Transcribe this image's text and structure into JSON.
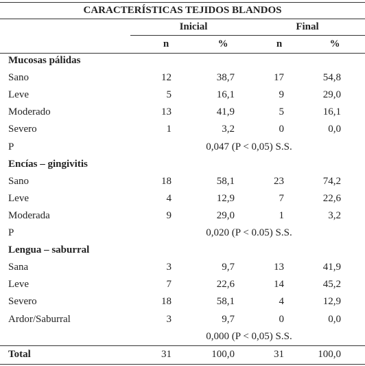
{
  "title": "CARACTERÍSTICAS TEJIDOS BLANDOS",
  "column_groups": [
    "Inicial",
    "Final"
  ],
  "columns": [
    "n",
    "%",
    "n",
    "%"
  ],
  "sections": [
    {
      "heading": "Mucosas pálidas",
      "rows": [
        [
          "Sano",
          "12",
          "38,7",
          "17",
          "54,8"
        ],
        [
          "Leve",
          "5",
          "16,1",
          "9",
          "29,0"
        ],
        [
          "Moderado",
          "13",
          "41,9",
          "5",
          "16,1"
        ],
        [
          "Severo",
          "1",
          "3,2",
          "0",
          "0,0"
        ]
      ],
      "p_label": "P",
      "p_value": "0,047 (P < 0,05) S.S."
    },
    {
      "heading": "Encías – gingivitis",
      "rows": [
        [
          "Sano",
          "18",
          "58,1",
          "23",
          "74,2"
        ],
        [
          "Leve",
          "4",
          "12,9",
          "7",
          "22,6"
        ],
        [
          "Moderada",
          "9",
          "29,0",
          "1",
          "3,2"
        ]
      ],
      "p_label": "P",
      "p_value": "0,020 (P < 0.05) S.S."
    },
    {
      "heading": "Lengua – saburral",
      "rows": [
        [
          "Sana",
          "3",
          "9,7",
          "13",
          "41,9"
        ],
        [
          "Leve",
          "7",
          "22,6",
          "14",
          "45,2"
        ],
        [
          "Severo",
          "18",
          "58,1",
          "4",
          "12,9"
        ],
        [
          "Ardor/Saburral",
          "3",
          "9,7",
          "0",
          "0,0"
        ]
      ],
      "p_value": "0,000 (P < 0,05) S.S."
    }
  ],
  "total": [
    "Total",
    "31",
    "100,0",
    "31",
    "100,0"
  ]
}
